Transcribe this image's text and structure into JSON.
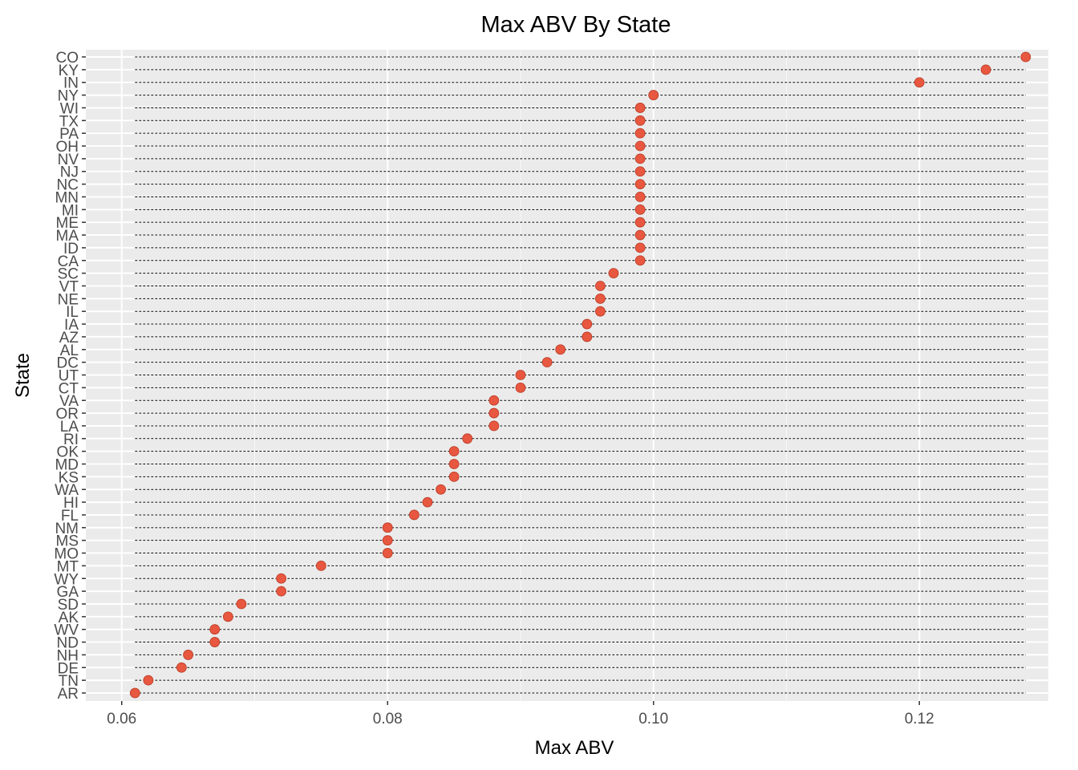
{
  "chart_data": {
    "type": "scatter",
    "title": "Max ABV By State",
    "xlabel": "Max ABV",
    "ylabel": "State",
    "xlim": [
      0.0573,
      0.1297
    ],
    "x_ticks": [
      "0.06",
      "0.08",
      "0.10",
      "0.12"
    ],
    "x_tick_values": [
      0.06,
      0.08,
      0.1,
      0.12
    ],
    "grid": true,
    "legend": "none",
    "point_color": "#E8573F",
    "panel_background": "#EBEBEB",
    "categories": [
      "AR",
      "TN",
      "DE",
      "NH",
      "ND",
      "WV",
      "AK",
      "SD",
      "GA",
      "WY",
      "MT",
      "MO",
      "MS",
      "NM",
      "FL",
      "HI",
      "WA",
      "KS",
      "MD",
      "OK",
      "RI",
      "LA",
      "OR",
      "VA",
      "CT",
      "UT",
      "DC",
      "AL",
      "AZ",
      "IA",
      "IL",
      "NE",
      "VT",
      "SC",
      "CA",
      "ID",
      "MA",
      "ME",
      "MI",
      "MN",
      "NC",
      "NJ",
      "NV",
      "OH",
      "PA",
      "TX",
      "WI",
      "NY",
      "IN",
      "KY",
      "CO"
    ],
    "values": [
      0.061,
      0.062,
      0.0645,
      0.065,
      0.067,
      0.067,
      0.068,
      0.069,
      0.072,
      0.072,
      0.075,
      0.08,
      0.08,
      0.08,
      0.082,
      0.083,
      0.084,
      0.085,
      0.085,
      0.085,
      0.086,
      0.088,
      0.088,
      0.088,
      0.09,
      0.09,
      0.092,
      0.093,
      0.095,
      0.095,
      0.096,
      0.096,
      0.096,
      0.097,
      0.099,
      0.099,
      0.099,
      0.099,
      0.099,
      0.099,
      0.099,
      0.099,
      0.099,
      0.099,
      0.099,
      0.099,
      0.099,
      0.1,
      0.12,
      0.125,
      0.128
    ]
  }
}
